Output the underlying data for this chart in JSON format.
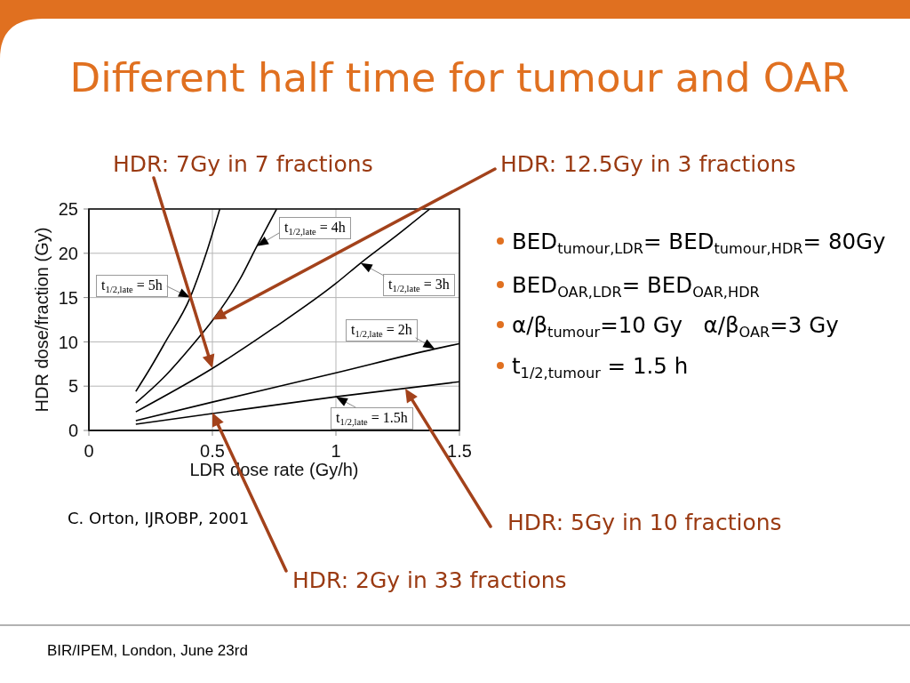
{
  "chart_data": {
    "type": "line",
    "title": "Different half time for tumour and OAR",
    "xlabel": "LDR dose rate (Gy/h)",
    "ylabel": "HDR dose/fraction (Gy)",
    "xlim": [
      0,
      1.5
    ],
    "xticks": [
      0,
      0.5,
      1,
      1.5
    ],
    "ylim": [
      0,
      25
    ],
    "yticks": [
      0,
      5,
      10,
      15,
      20,
      25
    ],
    "grid": true,
    "marker": "none",
    "line_style": "solid",
    "series": [
      {
        "name": "t$_{1/2,late}$ = 5h",
        "color": "#000000",
        "x": [
          0.19,
          0.25,
          0.31,
          0.41,
          0.475,
          0.53
        ],
        "values": [
          4.4,
          7.1,
          10,
          15,
          20,
          25
        ]
      },
      {
        "name": "t$_{1/2,late}$ = 4h",
        "color": "#000000",
        "x": [
          0.19,
          0.3,
          0.43,
          0.5,
          0.61,
          0.68,
          0.76
        ],
        "values": [
          3.1,
          5.9,
          10,
          12.4,
          17,
          20.8,
          25
        ]
      },
      {
        "name": "t$_{1/2,late}$ = 3h",
        "color": "#000000",
        "x": [
          0.19,
          0.5,
          0.75,
          1.0,
          1.1,
          1.25,
          1.38
        ],
        "values": [
          2.1,
          7.0,
          11.6,
          16.6,
          18.9,
          22.1,
          25
        ]
      },
      {
        "name": "t$_{1/2,late}$ = 2h",
        "color": "#000000",
        "x": [
          0.19,
          0.5,
          1.0,
          1.4,
          1.5
        ],
        "values": [
          1.1,
          3.2,
          6.5,
          9.2,
          9.8
        ]
      },
      {
        "name": "t$_{1/2,late}$ = 1.5h",
        "color": "#000000",
        "x": [
          0.19,
          0.5,
          1.0,
          1.5
        ],
        "values": [
          0.7,
          1.9,
          3.8,
          5.5
        ]
      }
    ],
    "annotations": [
      "HDR: 7Gy in 7 fractions",
      "HDR: 12.5Gy in 3 fractions",
      "HDR: 5Gy in 10 fractions",
      "HDR: 2Gy in 33 fractions",
      "C. Orton, IJROBP, 2001",
      "BED$_{tumour,LDR}$= BED$_{tumour,HDR}$= 80Gy",
      "BED$_{OAR,LDR}$= BED$_{OAR,HDR}$",
      "α/β$_{tumour}$=10 Gy   α/β$_{OAR}$=3 Gy",
      "t$_{1/2,tumour}$ = 1.5 h",
      "BIR/IPEM, London, June 23rd"
    ]
  }
}
